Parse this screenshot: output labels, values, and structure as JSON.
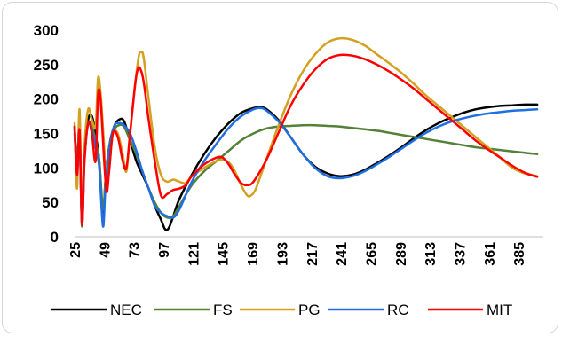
{
  "chart_data": {
    "type": "line",
    "title": "",
    "xlabel": "",
    "ylabel": "",
    "xlim": [
      25,
      405
    ],
    "ylim": [
      0,
      300
    ],
    "y_ticks": [
      0,
      50,
      100,
      150,
      200,
      250,
      300
    ],
    "x_ticks": [
      25,
      49,
      73,
      97,
      121,
      145,
      169,
      193,
      217,
      241,
      265,
      289,
      313,
      337,
      361,
      385
    ],
    "grid": false,
    "legend": "bottom",
    "series": [
      {
        "name": "NEC",
        "color": "#000000",
        "points": [
          [
            25,
            160
          ],
          [
            27,
            100
          ],
          [
            29,
            160
          ],
          [
            31,
            20
          ],
          [
            33,
            120
          ],
          [
            36,
            170
          ],
          [
            39,
            175
          ],
          [
            42,
            150
          ],
          [
            45,
            110
          ],
          [
            48,
            30
          ],
          [
            50,
            80
          ],
          [
            53,
            130
          ],
          [
            57,
            160
          ],
          [
            61,
            170
          ],
          [
            65,
            168
          ],
          [
            70,
            140
          ],
          [
            75,
            110
          ],
          [
            80,
            90
          ],
          [
            85,
            70
          ],
          [
            90,
            45
          ],
          [
            95,
            25
          ],
          [
            98,
            12
          ],
          [
            100,
            10
          ],
          [
            102,
            15
          ],
          [
            105,
            30
          ],
          [
            110,
            55
          ],
          [
            120,
            90
          ],
          [
            130,
            120
          ],
          [
            140,
            145
          ],
          [
            150,
            165
          ],
          [
            160,
            180
          ],
          [
            170,
            187
          ],
          [
            175,
            188
          ],
          [
            180,
            186
          ],
          [
            190,
            170
          ],
          [
            200,
            145
          ],
          [
            210,
            120
          ],
          [
            220,
            102
          ],
          [
            230,
            92
          ],
          [
            240,
            88
          ],
          [
            250,
            90
          ],
          [
            260,
            97
          ],
          [
            270,
            107
          ],
          [
            280,
            118
          ],
          [
            290,
            130
          ],
          [
            300,
            143
          ],
          [
            310,
            155
          ],
          [
            320,
            165
          ],
          [
            330,
            173
          ],
          [
            340,
            180
          ],
          [
            350,
            185
          ],
          [
            360,
            188
          ],
          [
            370,
            190
          ],
          [
            380,
            191
          ],
          [
            390,
            192
          ],
          [
            400,
            192
          ]
        ]
      },
      {
        "name": "FS",
        "color": "#538135",
        "points": [
          [
            25,
            150
          ],
          [
            27,
            100
          ],
          [
            29,
            150
          ],
          [
            31,
            15
          ],
          [
            33,
            120
          ],
          [
            36,
            165
          ],
          [
            39,
            160
          ],
          [
            42,
            140
          ],
          [
            45,
            110
          ],
          [
            48,
            40
          ],
          [
            50,
            80
          ],
          [
            53,
            130
          ],
          [
            57,
            155
          ],
          [
            61,
            162
          ],
          [
            65,
            160
          ],
          [
            70,
            140
          ],
          [
            75,
            120
          ],
          [
            80,
            95
          ],
          [
            85,
            70
          ],
          [
            90,
            50
          ],
          [
            95,
            35
          ],
          [
            100,
            28
          ],
          [
            105,
            30
          ],
          [
            110,
            45
          ],
          [
            120,
            75
          ],
          [
            130,
            95
          ],
          [
            140,
            110
          ],
          [
            150,
            125
          ],
          [
            160,
            140
          ],
          [
            170,
            150
          ],
          [
            180,
            157
          ],
          [
            190,
            160
          ],
          [
            200,
            161
          ],
          [
            210,
            162
          ],
          [
            220,
            162
          ],
          [
            230,
            161
          ],
          [
            240,
            160
          ],
          [
            250,
            158
          ],
          [
            260,
            156
          ],
          [
            270,
            154
          ],
          [
            280,
            151
          ],
          [
            290,
            148
          ],
          [
            300,
            145
          ],
          [
            310,
            142
          ],
          [
            320,
            139
          ],
          [
            330,
            136
          ],
          [
            340,
            133
          ],
          [
            350,
            130
          ],
          [
            360,
            128
          ],
          [
            370,
            126
          ],
          [
            380,
            124
          ],
          [
            390,
            122
          ],
          [
            400,
            120
          ]
        ]
      },
      {
        "name": "PG",
        "color": "#d4a020",
        "points": [
          [
            25,
            165
          ],
          [
            27,
            70
          ],
          [
            29,
            185
          ],
          [
            31,
            20
          ],
          [
            33,
            130
          ],
          [
            36,
            185
          ],
          [
            39,
            170
          ],
          [
            42,
            160
          ],
          [
            44,
            230
          ],
          [
            46,
            210
          ],
          [
            49,
            130
          ],
          [
            51,
            70
          ],
          [
            53,
            110
          ],
          [
            56,
            150
          ],
          [
            60,
            150
          ],
          [
            64,
            120
          ],
          [
            67,
            95
          ],
          [
            70,
            150
          ],
          [
            74,
            220
          ],
          [
            77,
            262
          ],
          [
            79,
            268
          ],
          [
            81,
            260
          ],
          [
            85,
            200
          ],
          [
            90,
            130
          ],
          [
            95,
            90
          ],
          [
            100,
            80
          ],
          [
            105,
            83
          ],
          [
            110,
            80
          ],
          [
            115,
            78
          ],
          [
            120,
            88
          ],
          [
            130,
            100
          ],
          [
            140,
            110
          ],
          [
            145,
            112
          ],
          [
            150,
            108
          ],
          [
            155,
            95
          ],
          [
            160,
            75
          ],
          [
            165,
            60
          ],
          [
            168,
            60
          ],
          [
            172,
            70
          ],
          [
            180,
            110
          ],
          [
            190,
            160
          ],
          [
            200,
            205
          ],
          [
            210,
            240
          ],
          [
            220,
            265
          ],
          [
            230,
            282
          ],
          [
            240,
            288
          ],
          [
            250,
            286
          ],
          [
            260,
            278
          ],
          [
            270,
            265
          ],
          [
            280,
            252
          ],
          [
            290,
            238
          ],
          [
            300,
            222
          ],
          [
            310,
            205
          ],
          [
            320,
            190
          ],
          [
            330,
            175
          ],
          [
            340,
            160
          ],
          [
            350,
            145
          ],
          [
            360,
            130
          ],
          [
            370,
            115
          ],
          [
            380,
            100
          ],
          [
            390,
            92
          ],
          [
            400,
            88
          ]
        ]
      },
      {
        "name": "RC",
        "color": "#1f6fe0",
        "points": [
          [
            25,
            155
          ],
          [
            27,
            90
          ],
          [
            29,
            150
          ],
          [
            31,
            20
          ],
          [
            33,
            110
          ],
          [
            36,
            165
          ],
          [
            39,
            155
          ],
          [
            42,
            130
          ],
          [
            45,
            100
          ],
          [
            48,
            15
          ],
          [
            50,
            70
          ],
          [
            53,
            125
          ],
          [
            57,
            160
          ],
          [
            61,
            165
          ],
          [
            65,
            162
          ],
          [
            70,
            150
          ],
          [
            75,
            125
          ],
          [
            80,
            95
          ],
          [
            85,
            70
          ],
          [
            90,
            45
          ],
          [
            95,
            35
          ],
          [
            100,
            30
          ],
          [
            105,
            28
          ],
          [
            110,
            40
          ],
          [
            120,
            80
          ],
          [
            130,
            110
          ],
          [
            140,
            135
          ],
          [
            150,
            158
          ],
          [
            160,
            175
          ],
          [
            170,
            185
          ],
          [
            175,
            187
          ],
          [
            180,
            184
          ],
          [
            190,
            168
          ],
          [
            200,
            145
          ],
          [
            210,
            120
          ],
          [
            220,
            100
          ],
          [
            230,
            88
          ],
          [
            240,
            85
          ],
          [
            250,
            88
          ],
          [
            260,
            95
          ],
          [
            270,
            105
          ],
          [
            280,
            116
          ],
          [
            290,
            128
          ],
          [
            300,
            140
          ],
          [
            310,
            151
          ],
          [
            320,
            160
          ],
          [
            330,
            167
          ],
          [
            340,
            172
          ],
          [
            350,
            176
          ],
          [
            360,
            179
          ],
          [
            370,
            181
          ],
          [
            380,
            183
          ],
          [
            390,
            184
          ],
          [
            400,
            185
          ]
        ]
      },
      {
        "name": "MIT",
        "color": "#ff0000",
        "points": [
          [
            25,
            160
          ],
          [
            27,
            90
          ],
          [
            29,
            155
          ],
          [
            31,
            18
          ],
          [
            33,
            110
          ],
          [
            36,
            165
          ],
          [
            39,
            150
          ],
          [
            42,
            110
          ],
          [
            44,
            205
          ],
          [
            46,
            200
          ],
          [
            49,
            110
          ],
          [
            51,
            65
          ],
          [
            53,
            95
          ],
          [
            56,
            150
          ],
          [
            60,
            145
          ],
          [
            64,
            110
          ],
          [
            67,
            100
          ],
          [
            70,
            150
          ],
          [
            74,
            220
          ],
          [
            76,
            242
          ],
          [
            78,
            245
          ],
          [
            81,
            225
          ],
          [
            85,
            170
          ],
          [
            90,
            110
          ],
          [
            95,
            60
          ],
          [
            100,
            62
          ],
          [
            105,
            68
          ],
          [
            110,
            70
          ],
          [
            115,
            75
          ],
          [
            120,
            88
          ],
          [
            130,
            105
          ],
          [
            140,
            115
          ],
          [
            145,
            115
          ],
          [
            150,
            105
          ],
          [
            155,
            90
          ],
          [
            160,
            78
          ],
          [
            165,
            75
          ],
          [
            170,
            80
          ],
          [
            180,
            110
          ],
          [
            190,
            150
          ],
          [
            200,
            190
          ],
          [
            210,
            220
          ],
          [
            220,
            243
          ],
          [
            230,
            258
          ],
          [
            240,
            264
          ],
          [
            250,
            263
          ],
          [
            260,
            258
          ],
          [
            270,
            250
          ],
          [
            280,
            240
          ],
          [
            290,
            228
          ],
          [
            300,
            215
          ],
          [
            310,
            200
          ],
          [
            320,
            185
          ],
          [
            330,
            170
          ],
          [
            340,
            155
          ],
          [
            350,
            140
          ],
          [
            360,
            127
          ],
          [
            370,
            115
          ],
          [
            380,
            103
          ],
          [
            390,
            93
          ],
          [
            400,
            87
          ]
        ]
      }
    ]
  }
}
